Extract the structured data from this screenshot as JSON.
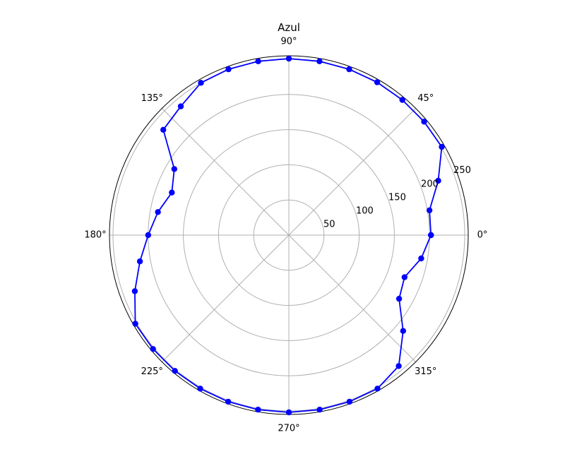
{
  "chart_data": {
    "type": "line",
    "projection": "polar",
    "title": "Azul",
    "angle_unit": "degrees",
    "r_lim": [
      0,
      255
    ],
    "r_ticks": [
      "50",
      "100",
      "150",
      "200",
      "250"
    ],
    "r_tick_values": [
      50,
      100,
      150,
      200,
      250
    ],
    "theta_ticks": [
      "0°",
      "45°",
      "90°",
      "135°",
      "180°",
      "225°",
      "270°",
      "315°"
    ],
    "theta_tick_values": [
      0,
      45,
      90,
      135,
      180,
      225,
      270,
      315
    ],
    "grid": true,
    "series": [
      {
        "color": "#0000ff",
        "marker": "circle",
        "points": [
          {
            "theta": 0,
            "r": 202
          },
          {
            "theta": 10,
            "r": 203
          },
          {
            "theta": 20,
            "r": 226
          },
          {
            "theta": 30,
            "r": 251
          },
          {
            "theta": 40,
            "r": 251
          },
          {
            "theta": 50,
            "r": 251
          },
          {
            "theta": 60,
            "r": 251
          },
          {
            "theta": 70,
            "r": 251
          },
          {
            "theta": 80,
            "r": 251
          },
          {
            "theta": 90,
            "r": 251
          },
          {
            "theta": 100,
            "r": 251
          },
          {
            "theta": 110,
            "r": 251
          },
          {
            "theta": 120,
            "r": 250
          },
          {
            "theta": 130,
            "r": 239
          },
          {
            "theta": 140,
            "r": 233
          },
          {
            "theta": 150,
            "r": 188
          },
          {
            "theta": 160,
            "r": 177
          },
          {
            "theta": 170,
            "r": 189
          },
          {
            "theta": 180,
            "r": 200
          },
          {
            "theta": 190,
            "r": 215
          },
          {
            "theta": 200,
            "r": 233
          },
          {
            "theta": 210,
            "r": 252
          },
          {
            "theta": 220,
            "r": 252
          },
          {
            "theta": 230,
            "r": 252
          },
          {
            "theta": 240,
            "r": 252
          },
          {
            "theta": 250,
            "r": 252
          },
          {
            "theta": 260,
            "r": 252
          },
          {
            "theta": 270,
            "r": 252
          },
          {
            "theta": 280,
            "r": 252
          },
          {
            "theta": 290,
            "r": 252
          },
          {
            "theta": 300,
            "r": 252
          },
          {
            "theta": 310,
            "r": 243
          },
          {
            "theta": 320,
            "r": 212
          },
          {
            "theta": 330,
            "r": 181
          },
          {
            "theta": 340,
            "r": 175
          },
          {
            "theta": 350,
            "r": 191
          },
          {
            "theta": 360,
            "r": 202
          }
        ]
      }
    ]
  }
}
